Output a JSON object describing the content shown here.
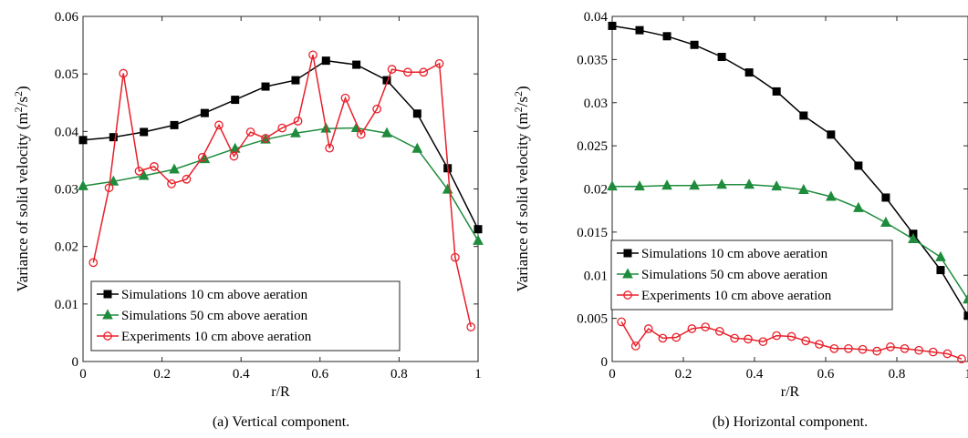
{
  "chart_data": [
    {
      "type": "line",
      "caption": "(a) Vertical component.",
      "xlabel": "r/R",
      "ylabel_main": "Variance of solid velocity (m",
      "ylabel_sup1": "2",
      "ylabel_mid": "/s",
      "ylabel_sup2": "2",
      "ylabel_end": ")",
      "xlim": [
        0,
        1
      ],
      "ylim": [
        0,
        0.06
      ],
      "xticks": [
        0,
        0.2,
        0.4,
        0.6,
        0.8,
        1
      ],
      "xtick_labels": [
        "0",
        "0.2",
        "0.4",
        "0.6",
        "0.8",
        "1"
      ],
      "yticks": [
        0,
        0.01,
        0.02,
        0.03,
        0.04,
        0.05,
        0.06
      ],
      "ytick_labels": [
        "0",
        "0.01",
        "0.02",
        "0.03",
        "0.04",
        "0.05",
        "0.06"
      ],
      "legend_position": "bottom-left",
      "series": [
        {
          "name": "Simulations 10 cm above aeration",
          "color": "#000000",
          "marker": "square",
          "x": [
            0,
            0.077,
            0.154,
            0.231,
            0.308,
            0.385,
            0.462,
            0.538,
            0.615,
            0.692,
            0.769,
            0.846,
            0.923,
            1.0
          ],
          "y": [
            0.0385,
            0.039,
            0.0399,
            0.0411,
            0.0432,
            0.0455,
            0.0478,
            0.0489,
            0.0523,
            0.0516,
            0.0489,
            0.0431,
            0.0336,
            0.023
          ]
        },
        {
          "name": "Simulations 50 cm above aeration",
          "color": "#1e8c3c",
          "marker": "triangle",
          "x": [
            0,
            0.077,
            0.154,
            0.231,
            0.308,
            0.385,
            0.462,
            0.538,
            0.615,
            0.692,
            0.769,
            0.846,
            0.923,
            1.0
          ],
          "y": [
            0.0305,
            0.0313,
            0.0323,
            0.0334,
            0.0352,
            0.037,
            0.0386,
            0.0397,
            0.0405,
            0.0406,
            0.0397,
            0.037,
            0.0299,
            0.021
          ]
        },
        {
          "name": "Experiments 10 cm above aeration",
          "color": "#e8202a",
          "marker": "circle",
          "x": [
            0.026,
            0.066,
            0.102,
            0.142,
            0.18,
            0.224,
            0.262,
            0.302,
            0.344,
            0.382,
            0.424,
            0.462,
            0.504,
            0.544,
            0.582,
            0.624,
            0.664,
            0.704,
            0.744,
            0.782,
            0.822,
            0.862,
            0.902,
            0.942,
            0.982
          ],
          "y": [
            0.0172,
            0.0302,
            0.0501,
            0.0331,
            0.0339,
            0.0309,
            0.0317,
            0.0355,
            0.0411,
            0.0357,
            0.0399,
            0.0388,
            0.0406,
            0.0418,
            0.0533,
            0.0371,
            0.0458,
            0.0395,
            0.0439,
            0.0508,
            0.0503,
            0.0503,
            0.0518,
            0.0181,
            0.006
          ]
        }
      ]
    },
    {
      "type": "line",
      "caption": "(b) Horizontal component.",
      "xlabel": "r/R",
      "ylabel_main": "Variance of solid velocity (m",
      "ylabel_sup1": "2",
      "ylabel_mid": "/s",
      "ylabel_sup2": "2",
      "ylabel_end": ")",
      "xlim": [
        0,
        1
      ],
      "ylim": [
        0,
        0.04
      ],
      "xticks": [
        0,
        0.2,
        0.4,
        0.6,
        0.8,
        1
      ],
      "xtick_labels": [
        "0",
        "0.2",
        "0.4",
        "0.6",
        "0.8",
        "1"
      ],
      "yticks": [
        0,
        0.005,
        0.01,
        0.015,
        0.02,
        0.025,
        0.03,
        0.035,
        0.04
      ],
      "ytick_labels": [
        "0",
        "0.005",
        "0.01",
        "0.015",
        "0.02",
        "0.025",
        "0.03",
        "0.035",
        "0.04"
      ],
      "legend_position": "bottom-left",
      "series": [
        {
          "name": "Simulations 10 cm above aeration",
          "color": "#000000",
          "marker": "square",
          "x": [
            0,
            0.077,
            0.154,
            0.231,
            0.308,
            0.385,
            0.462,
            0.538,
            0.615,
            0.692,
            0.769,
            0.846,
            0.923,
            1.0
          ],
          "y": [
            0.0389,
            0.0384,
            0.0377,
            0.0367,
            0.0353,
            0.0335,
            0.0313,
            0.0285,
            0.0263,
            0.0227,
            0.019,
            0.0148,
            0.0106,
            0.0053
          ]
        },
        {
          "name": "Simulations 50 cm above aeration",
          "color": "#1e8c3c",
          "marker": "triangle",
          "x": [
            0,
            0.077,
            0.154,
            0.231,
            0.308,
            0.385,
            0.462,
            0.538,
            0.615,
            0.692,
            0.769,
            0.846,
            0.923,
            1.0
          ],
          "y": [
            0.0203,
            0.0203,
            0.0204,
            0.0204,
            0.0205,
            0.0205,
            0.0203,
            0.0199,
            0.0191,
            0.0178,
            0.0161,
            0.0142,
            0.0121,
            0.0072
          ]
        },
        {
          "name": "Experiments 10 cm above aeration",
          "color": "#e8202a",
          "marker": "circle",
          "x": [
            0.026,
            0.066,
            0.102,
            0.142,
            0.18,
            0.224,
            0.262,
            0.302,
            0.344,
            0.382,
            0.424,
            0.462,
            0.504,
            0.544,
            0.582,
            0.624,
            0.664,
            0.704,
            0.744,
            0.782,
            0.822,
            0.862,
            0.902,
            0.942,
            0.982
          ],
          "y": [
            0.0046,
            0.0018,
            0.0038,
            0.0027,
            0.0028,
            0.0038,
            0.004,
            0.0035,
            0.0027,
            0.0026,
            0.0023,
            0.003,
            0.0029,
            0.0024,
            0.002,
            0.0015,
            0.0015,
            0.0014,
            0.0012,
            0.0017,
            0.0015,
            0.0013,
            0.0011,
            0.0009,
            0.0003
          ]
        }
      ]
    }
  ]
}
